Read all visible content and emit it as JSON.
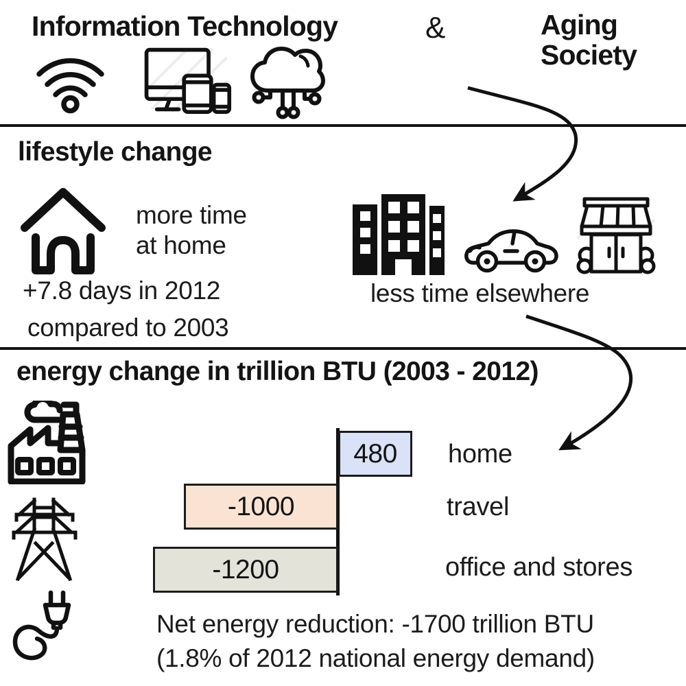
{
  "colors": {
    "ink": "#111111",
    "bar_border": "#1c1c1c",
    "bar_home_fill": "#d9e2f7",
    "bar_travel_fill": "#fae3d3",
    "bar_office_fill": "#e3e3da",
    "hatch": "#ececec"
  },
  "header": {
    "left_title": "Information Technology",
    "ampersand": "&",
    "right_title_line1": "Aging",
    "right_title_line2": "Society"
  },
  "lifestyle": {
    "heading": "lifestyle change",
    "more_time_line1": "more time",
    "more_time_line2": "at home",
    "stat_line1": "+7.8 days in 2012",
    "stat_line2": "compared to 2003",
    "elsewhere_caption": "less time elsewhere"
  },
  "energy": {
    "heading": "energy change in trillion BTU (2003 - 2012)",
    "net_line1": "Net energy reduction: -1700 trillion BTU",
    "net_line2": "(1.8% of 2012 national energy demand)"
  },
  "chart_data": {
    "type": "bar",
    "orientation": "horizontal",
    "title": "energy change in trillion BTU (2003 - 2012)",
    "categories": [
      "home",
      "travel",
      "office and stores"
    ],
    "values": [
      480,
      -1000,
      -1200
    ],
    "value_labels": [
      "480",
      "-1000",
      "-1200"
    ],
    "bar_colors": [
      "#d9e2f7",
      "#fae3d3",
      "#e3e3da"
    ],
    "unit": "trillion BTU",
    "period": "2003 - 2012",
    "net_change": -1700,
    "net_share_of_2012_demand_pct": 1.8,
    "axis": {
      "zero_line": true,
      "xlim": [
        -1400,
        600
      ],
      "gridlines": false,
      "legend": false
    }
  }
}
